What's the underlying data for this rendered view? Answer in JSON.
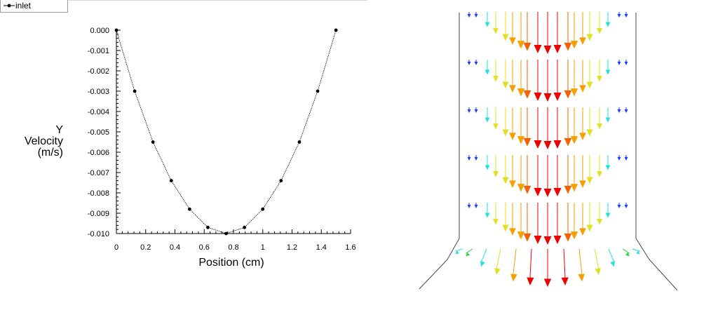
{
  "legend": {
    "entries": [
      "inlet"
    ]
  },
  "chart_data": {
    "type": "line",
    "title": "",
    "xlabel": "Position (cm)",
    "ylabel_lines": [
      "Y",
      "Velocity",
      "(m/s)"
    ],
    "xlim": [
      0,
      1.6
    ],
    "ylim": [
      -0.01,
      0.0
    ],
    "xticks": [
      0,
      0.2,
      0.4,
      0.6,
      0.8,
      1,
      1.2,
      1.4,
      1.6
    ],
    "xtick_labels": [
      "0",
      "0.2",
      "0.4",
      "0.6",
      "0.8",
      "1",
      "1.2",
      "1.4",
      "1.6"
    ],
    "yticks": [
      0.0,
      -0.001,
      -0.002,
      -0.003,
      -0.004,
      -0.005,
      -0.006,
      -0.007,
      -0.008,
      -0.009,
      -0.01
    ],
    "ytick_labels": [
      "0.000",
      "-0.001",
      "-0.002",
      "-0.003",
      "-0.004",
      "-0.005",
      "-0.006",
      "-0.007",
      "-0.008",
      "-0.009",
      "-0.010"
    ],
    "grid": false,
    "legend_position": "top-left",
    "series": [
      {
        "name": "inlet",
        "color": "#000000",
        "x": [
          0,
          0.125,
          0.25,
          0.375,
          0.5,
          0.625,
          0.75,
          0.875,
          1.0,
          1.125,
          1.25,
          1.375,
          1.5
        ],
        "y": [
          0.0,
          -0.003,
          -0.0055,
          -0.0074,
          -0.0088,
          -0.0097,
          -0.01,
          -0.0097,
          -0.0088,
          -0.0074,
          -0.0055,
          -0.003,
          0.0
        ]
      }
    ]
  },
  "vector_field": {
    "description_colors": {
      "low": "#1a3cff",
      "cyan": "#22e0e0",
      "green": "#22d640",
      "yellow": "#e0e020",
      "orange": "#f5a000",
      "dark_orange": "#f56000",
      "red": "#ee0000"
    }
  }
}
